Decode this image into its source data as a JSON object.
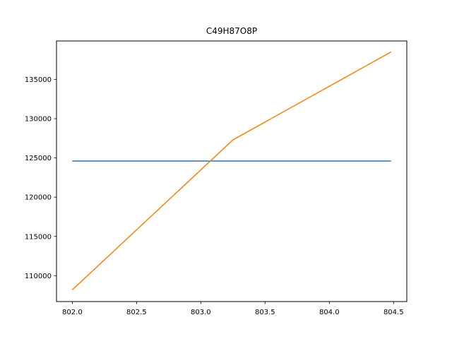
{
  "chart_data": {
    "type": "line",
    "title": "C49H87O8P",
    "xlabel": "",
    "ylabel": "",
    "xlim": [
      801.877,
      804.603
    ],
    "ylim": [
      106700,
      139900
    ],
    "x_ticks": [
      802.0,
      802.5,
      803.0,
      803.5,
      804.0,
      804.5
    ],
    "x_tick_labels": [
      "802.0",
      "802.5",
      "803.0",
      "803.5",
      "804.0",
      "804.5"
    ],
    "y_ticks": [
      110000,
      115000,
      120000,
      125000,
      130000,
      135000
    ],
    "y_tick_labels": [
      "110000",
      "115000",
      "120000",
      "125000",
      "130000",
      "135000"
    ],
    "grid": false,
    "series": [
      {
        "color": "#1f77b4",
        "x": [
          802.0,
          804.48
        ],
        "y": [
          124600,
          124600
        ]
      },
      {
        "color": "#ff7f0e",
        "x": [
          802.0,
          803.25,
          804.48
        ],
        "y": [
          108200,
          127300,
          138500
        ]
      }
    ]
  }
}
